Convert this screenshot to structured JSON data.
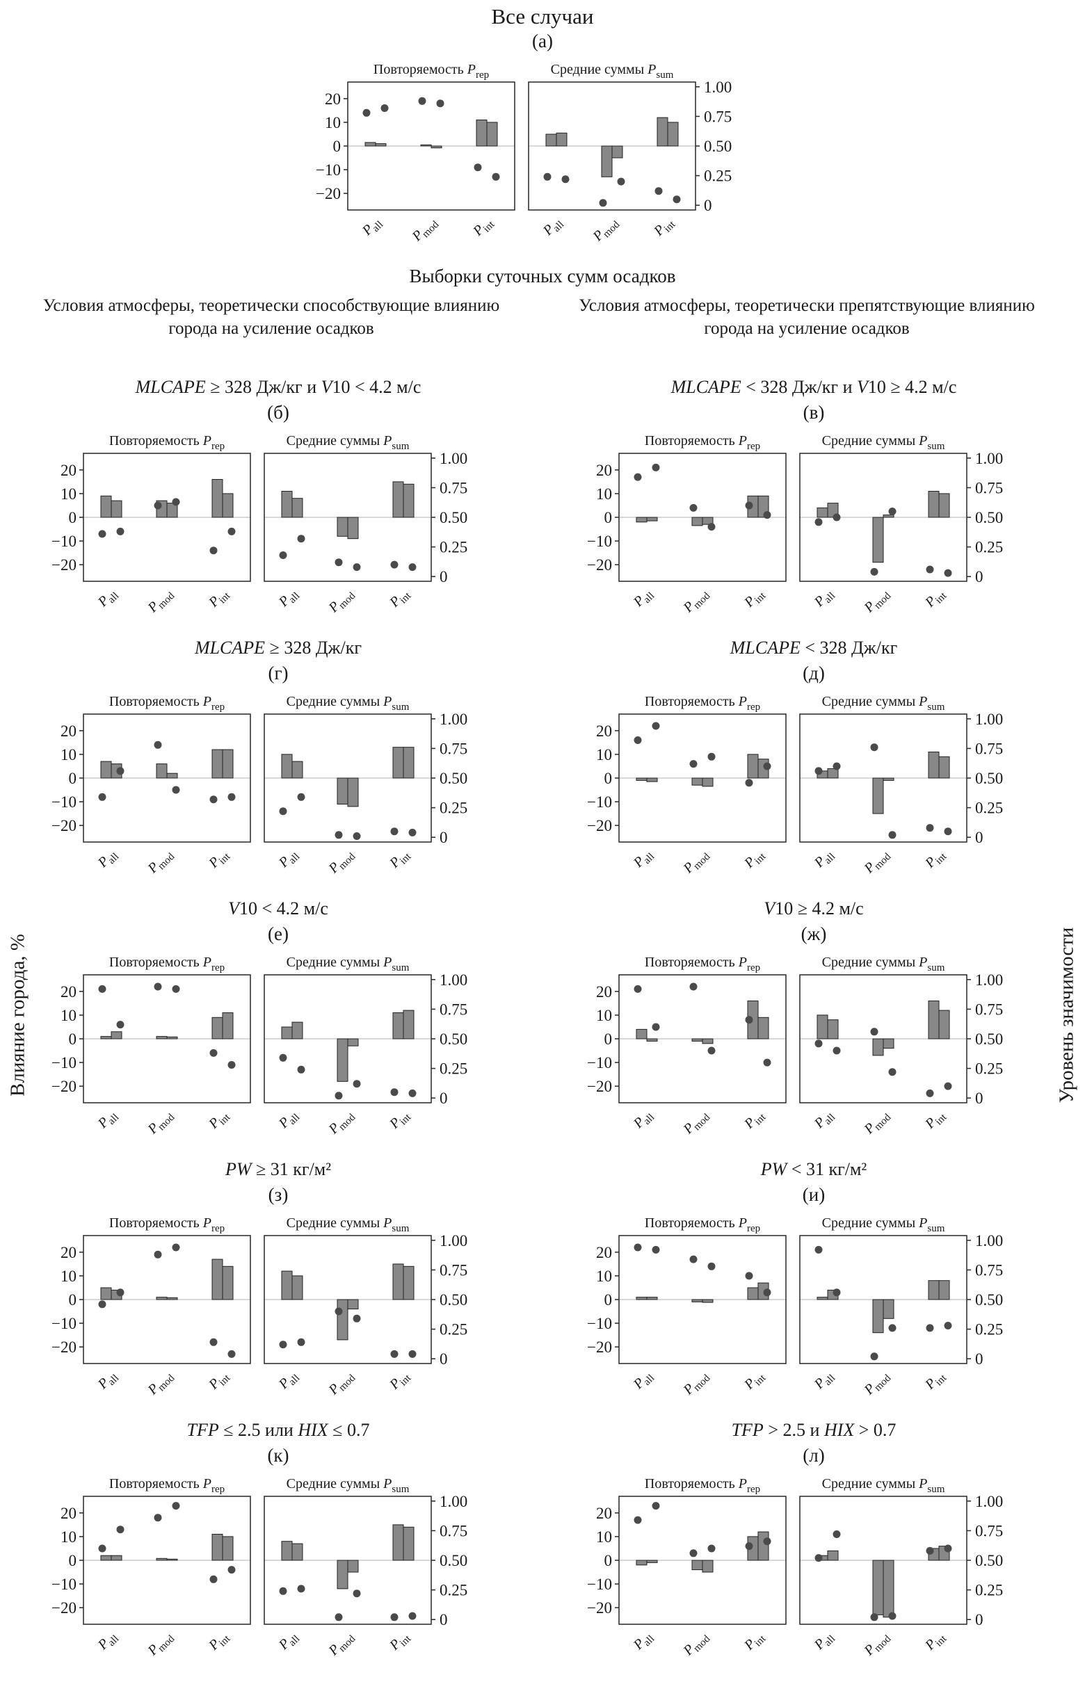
{
  "header": {
    "title": "Все случаи",
    "subtitle": "Выборки суточных сумм осадков",
    "column_left": "Условия атмосферы, теоретически способствующие влиянию города на усиление осадков",
    "column_right": "Условия атмосферы, теоретически препятствующие влиянию города на усиление осадков"
  },
  "axis": {
    "ylabel_left": "Влияние города, %",
    "ylabel_right": "Уровень значимости",
    "left_ticks": [
      20,
      10,
      0,
      -10,
      -20
    ],
    "right_ticks": [
      {
        "label": "1.00",
        "value": 1.0
      },
      {
        "label": "0.75",
        "value": 0.75
      },
      {
        "label": "0.50",
        "value": 0.5
      },
      {
        "label": "0.25",
        "value": 0.25
      },
      {
        "label": "0",
        "value": 0.0
      }
    ],
    "categories": [
      {
        "sym": "P",
        "sub": "all"
      },
      {
        "sym": "P",
        "sub": "mod"
      },
      {
        "sym": "P",
        "sub": "int"
      }
    ]
  },
  "subplot_titles": [
    {
      "prefix": "Повторяемость ",
      "sym": "P",
      "sub": "rep"
    },
    {
      "prefix": "Средние суммы ",
      "sym": "P",
      "sub": "sum"
    }
  ],
  "style": {
    "bar_fill": "#888888",
    "bar_edge": "#222222",
    "dot_fill": "#4a4a4a",
    "zero_line": "#b0b0b0",
    "frame": "#333333"
  },
  "chart_data": {
    "type": "bar",
    "categories": [
      "P_all",
      "P_mod",
      "P_int"
    ],
    "bars_ylabel": "Влияние города, %",
    "bars_ylim": [
      -25,
      25
    ],
    "dots_ylabel": "Уровень значимости",
    "dots_ylim": [
      0,
      1
    ],
    "panels": [
      {
        "id": "a",
        "letter": "(а)",
        "condition": null,
        "subplots": [
          {
            "name": "P_rep",
            "bars": [
              [
                1.5,
                1
              ],
              [
                0.5,
                -0.8
              ],
              [
                11,
                10
              ]
            ],
            "dots": [
              [
                0.78,
                0.82
              ],
              [
                0.88,
                0.86
              ],
              [
                0.32,
                0.24
              ]
            ]
          },
          {
            "name": "P_sum",
            "bars": [
              [
                5,
                5.5
              ],
              [
                -13,
                -5
              ],
              [
                12,
                10
              ]
            ],
            "dots": [
              [
                0.24,
                0.22
              ],
              [
                0.02,
                0.2
              ],
              [
                0.12,
                0.05
              ]
            ]
          }
        ]
      },
      {
        "id": "b",
        "letter": "(б)",
        "condition": [
          {
            "t": "MLCAPE",
            "i": true
          },
          {
            "t": " ≥ 328 Дж/кг и ",
            "i": false
          },
          {
            "t": "V",
            "i": true
          },
          {
            "t": "10 < 4.2 м/с",
            "i": false
          }
        ],
        "subplots": [
          {
            "name": "P_rep",
            "bars": [
              [
                9,
                7
              ],
              [
                7,
                6
              ],
              [
                16,
                10
              ]
            ],
            "dots": [
              [
                0.36,
                0.38
              ],
              [
                0.6,
                0.63
              ],
              [
                0.22,
                0.38
              ]
            ]
          },
          {
            "name": "P_sum",
            "bars": [
              [
                11,
                8
              ],
              [
                -8,
                -9
              ],
              [
                15,
                14
              ]
            ],
            "dots": [
              [
                0.18,
                0.32
              ],
              [
                0.12,
                0.08
              ],
              [
                0.1,
                0.08
              ]
            ]
          }
        ]
      },
      {
        "id": "v",
        "letter": "(в)",
        "condition": [
          {
            "t": "MLCAPE",
            "i": true
          },
          {
            "t": " < 328 Дж/кг и ",
            "i": false
          },
          {
            "t": "V",
            "i": true
          },
          {
            "t": "10 ≥ 4.2 м/с",
            "i": false
          }
        ],
        "subplots": [
          {
            "name": "P_rep",
            "bars": [
              [
                -2,
                -1.5
              ],
              [
                -3.5,
                -3
              ],
              [
                9,
                9
              ]
            ],
            "dots": [
              [
                0.84,
                0.92
              ],
              [
                0.58,
                0.42
              ],
              [
                0.6,
                0.52
              ]
            ]
          },
          {
            "name": "P_sum",
            "bars": [
              [
                4,
                6
              ],
              [
                -19,
                1
              ],
              [
                11,
                10
              ]
            ],
            "dots": [
              [
                0.46,
                0.5
              ],
              [
                0.04,
                0.55
              ],
              [
                0.06,
                0.03
              ]
            ]
          }
        ]
      },
      {
        "id": "g",
        "letter": "(г)",
        "condition": [
          {
            "t": "MLCAPE",
            "i": true
          },
          {
            "t": " ≥ 328 Дж/кг",
            "i": false
          }
        ],
        "subplots": [
          {
            "name": "P_rep",
            "bars": [
              [
                7,
                6
              ],
              [
                6,
                2
              ],
              [
                12,
                12
              ]
            ],
            "dots": [
              [
                0.34,
                0.56
              ],
              [
                0.78,
                0.4
              ],
              [
                0.32,
                0.34
              ]
            ]
          },
          {
            "name": "P_sum",
            "bars": [
              [
                10,
                7
              ],
              [
                -11,
                -12
              ],
              [
                13,
                13
              ]
            ],
            "dots": [
              [
                0.22,
                0.34
              ],
              [
                0.02,
                0.01
              ],
              [
                0.05,
                0.04
              ]
            ]
          }
        ]
      },
      {
        "id": "d",
        "letter": "(д)",
        "condition": [
          {
            "t": "MLCAPE",
            "i": true
          },
          {
            "t": " < 328 Дж/кг",
            "i": false
          }
        ],
        "subplots": [
          {
            "name": "P_rep",
            "bars": [
              [
                -1,
                -1.5
              ],
              [
                -3,
                -3.5
              ],
              [
                10,
                8
              ]
            ],
            "dots": [
              [
                0.82,
                0.94
              ],
              [
                0.62,
                0.68
              ],
              [
                0.46,
                0.6
              ]
            ]
          },
          {
            "name": "P_sum",
            "bars": [
              [
                3,
                4
              ],
              [
                -15,
                -1
              ],
              [
                11,
                9
              ]
            ],
            "dots": [
              [
                0.56,
                0.6
              ],
              [
                0.76,
                0.02
              ],
              [
                0.08,
                0.05
              ]
            ]
          }
        ]
      },
      {
        "id": "e",
        "letter": "(е)",
        "condition": [
          {
            "t": "V",
            "i": true
          },
          {
            "t": "10 < 4.2 м/с",
            "i": false
          }
        ],
        "subplots": [
          {
            "name": "P_rep",
            "bars": [
              [
                1,
                3
              ],
              [
                1,
                0.8
              ],
              [
                9,
                11
              ]
            ],
            "dots": [
              [
                0.92,
                0.62
              ],
              [
                0.94,
                0.92
              ],
              [
                0.38,
                0.28
              ]
            ]
          },
          {
            "name": "P_sum",
            "bars": [
              [
                5,
                7
              ],
              [
                -18,
                -3
              ],
              [
                11,
                12
              ]
            ],
            "dots": [
              [
                0.34,
                0.24
              ],
              [
                0.02,
                0.12
              ],
              [
                0.05,
                0.04
              ]
            ]
          }
        ]
      },
      {
        "id": "zh",
        "letter": "(ж)",
        "condition": [
          {
            "t": "V",
            "i": true
          },
          {
            "t": "10 ≥ 4.2 м/с",
            "i": false
          }
        ],
        "subplots": [
          {
            "name": "P_rep",
            "bars": [
              [
                4,
                -1
              ],
              [
                -1,
                -2
              ],
              [
                16,
                9
              ]
            ],
            "dots": [
              [
                0.92,
                0.6
              ],
              [
                0.94,
                0.4
              ],
              [
                0.66,
                0.3
              ]
            ]
          },
          {
            "name": "P_sum",
            "bars": [
              [
                10,
                8
              ],
              [
                -7,
                -4
              ],
              [
                16,
                12
              ]
            ],
            "dots": [
              [
                0.46,
                0.4
              ],
              [
                0.56,
                0.22
              ],
              [
                0.04,
                0.1
              ]
            ]
          }
        ]
      },
      {
        "id": "z",
        "letter": "(з)",
        "condition": [
          {
            "t": "PW",
            "i": true
          },
          {
            "t": " ≥ 31 кг/м²",
            "i": false
          }
        ],
        "subplots": [
          {
            "name": "P_rep",
            "bars": [
              [
                5,
                4
              ],
              [
                1,
                0.8
              ],
              [
                17,
                14
              ]
            ],
            "dots": [
              [
                0.46,
                0.56
              ],
              [
                0.88,
                0.94
              ],
              [
                0.14,
                0.04
              ]
            ]
          },
          {
            "name": "P_sum",
            "bars": [
              [
                12,
                10
              ],
              [
                -17,
                -4
              ],
              [
                15,
                14
              ]
            ],
            "dots": [
              [
                0.12,
                0.14
              ],
              [
                0.4,
                0.34
              ],
              [
                0.04,
                0.04
              ]
            ]
          }
        ]
      },
      {
        "id": "i",
        "letter": "(и)",
        "condition": [
          {
            "t": "PW",
            "i": true
          },
          {
            "t": " < 31 кг/м²",
            "i": false
          }
        ],
        "subplots": [
          {
            "name": "P_rep",
            "bars": [
              [
                1,
                1
              ],
              [
                -1,
                -1.2
              ],
              [
                5,
                7
              ]
            ],
            "dots": [
              [
                0.94,
                0.92
              ],
              [
                0.84,
                0.78
              ],
              [
                0.7,
                0.56
              ]
            ]
          },
          {
            "name": "P_sum",
            "bars": [
              [
                1,
                4
              ],
              [
                -14,
                -8
              ],
              [
                8,
                8
              ]
            ],
            "dots": [
              [
                0.92,
                0.56
              ],
              [
                0.02,
                0.26
              ],
              [
                0.26,
                0.28
              ]
            ]
          }
        ]
      },
      {
        "id": "k",
        "letter": "(к)",
        "condition": [
          {
            "t": "TFP",
            "i": true
          },
          {
            "t": " ≤ 2.5 или ",
            "i": false
          },
          {
            "t": "HIX",
            "i": true
          },
          {
            "t": " ≤ 0.7",
            "i": false
          }
        ],
        "subplots": [
          {
            "name": "P_rep",
            "bars": [
              [
                2,
                2
              ],
              [
                0.8,
                0.5
              ],
              [
                11,
                10
              ]
            ],
            "dots": [
              [
                0.6,
                0.76
              ],
              [
                0.86,
                0.96
              ],
              [
                0.34,
                0.42
              ]
            ]
          },
          {
            "name": "P_sum",
            "bars": [
              [
                8,
                7
              ],
              [
                -12,
                -5
              ],
              [
                15,
                14
              ]
            ],
            "dots": [
              [
                0.24,
                0.26
              ],
              [
                0.02,
                0.22
              ],
              [
                0.02,
                0.03
              ]
            ]
          }
        ]
      },
      {
        "id": "l",
        "letter": "(л)",
        "condition": [
          {
            "t": "TFP",
            "i": true
          },
          {
            "t": " > 2.5 и ",
            "i": false
          },
          {
            "t": "HIX",
            "i": true
          },
          {
            "t": " > 0.7",
            "i": false
          }
        ],
        "subplots": [
          {
            "name": "P_rep",
            "bars": [
              [
                -2,
                -1
              ],
              [
                -4,
                -5
              ],
              [
                10,
                12
              ]
            ],
            "dots": [
              [
                0.84,
                0.96
              ],
              [
                0.56,
                0.6
              ],
              [
                0.62,
                0.66
              ]
            ]
          },
          {
            "name": "P_sum",
            "bars": [
              [
                2,
                4
              ],
              [
                -23,
                -24
              ],
              [
                5,
                6
              ]
            ],
            "dots": [
              [
                0.52,
                0.72
              ],
              [
                0.02,
                0.03
              ],
              [
                0.58,
                0.6
              ]
            ]
          }
        ]
      }
    ]
  }
}
